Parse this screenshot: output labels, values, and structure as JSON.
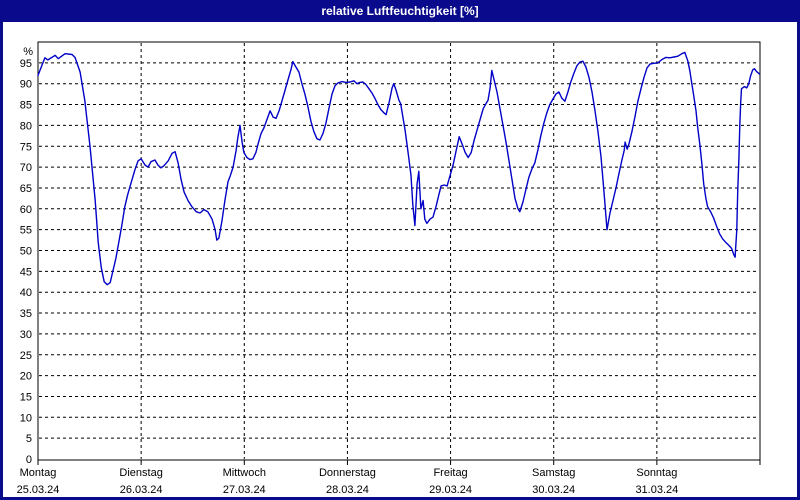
{
  "window": {
    "title": "relative Luftfeuchtigkeit [%]"
  },
  "colors": {
    "frame_blue": "#0a0a8c",
    "line_blue": "#0000c8",
    "grid_black": "#000000",
    "background": "#ffffff",
    "text": "#000000"
  },
  "chart_data": {
    "type": "line",
    "title": "relative Luftfeuchtigkeit [%]",
    "ylabel": "%",
    "ylim": [
      0,
      100
    ],
    "yticks": [
      0,
      5,
      10,
      15,
      20,
      25,
      30,
      35,
      40,
      45,
      50,
      55,
      60,
      65,
      70,
      75,
      80,
      85,
      90,
      95
    ],
    "grid": "dashed horizontal and vertical day separators",
    "legend_position": "none",
    "x_unit": "hours from Montag 25.03.24 00:00",
    "xlim": [
      0,
      168
    ],
    "days": [
      {
        "name": "Montag",
        "date": "25.03.24"
      },
      {
        "name": "Dienstag",
        "date": "26.03.24"
      },
      {
        "name": "Mittwoch",
        "date": "27.03.24"
      },
      {
        "name": "Donnerstag",
        "date": "28.03.24"
      },
      {
        "name": "Freitag",
        "date": "29.03.24"
      },
      {
        "name": "Samstag",
        "date": "30.03.24"
      },
      {
        "name": "Sonntag",
        "date": "31.03.24"
      }
    ],
    "series": [
      {
        "name": "relative Luftfeuchtigkeit",
        "color": "#0000c8",
        "points": [
          [
            0,
            92
          ],
          [
            1.6,
            96.2
          ],
          [
            2.3,
            95.7
          ],
          [
            4,
            96.8
          ],
          [
            4.7,
            96
          ],
          [
            6.3,
            97.2
          ],
          [
            7.9,
            97
          ],
          [
            8.6,
            96.3
          ],
          [
            9.8,
            92.8
          ],
          [
            10.9,
            86
          ],
          [
            12.1,
            75
          ],
          [
            13.3,
            62
          ],
          [
            14,
            52
          ],
          [
            14.7,
            46
          ],
          [
            15.4,
            42.5
          ],
          [
            16.1,
            41.8
          ],
          [
            16.8,
            42.3
          ],
          [
            17.4,
            45
          ],
          [
            18.1,
            48
          ],
          [
            18.8,
            52
          ],
          [
            19.5,
            56
          ],
          [
            20.2,
            60.5
          ],
          [
            20.9,
            63.5
          ],
          [
            21.6,
            66
          ],
          [
            22.6,
            69.5
          ],
          [
            23.3,
            71.5
          ],
          [
            24,
            72
          ],
          [
            24.9,
            70.5
          ],
          [
            25.6,
            70
          ],
          [
            26.3,
            71.3
          ],
          [
            27.2,
            71.7
          ],
          [
            27.9,
            70.5
          ],
          [
            28.6,
            69.8
          ],
          [
            29.3,
            70.3
          ],
          [
            30.3,
            71.5
          ],
          [
            31.2,
            73.3
          ],
          [
            31.9,
            73.7
          ],
          [
            32.6,
            71
          ],
          [
            33.3,
            67
          ],
          [
            34,
            64
          ],
          [
            34.9,
            62
          ],
          [
            35.8,
            60.5
          ],
          [
            36.8,
            59.3
          ],
          [
            37.7,
            59
          ],
          [
            38.6,
            59.8
          ],
          [
            39.5,
            59.3
          ],
          [
            40.5,
            57.5
          ],
          [
            41.2,
            55
          ],
          [
            41.6,
            52.5
          ],
          [
            42.1,
            53
          ],
          [
            42.8,
            57
          ],
          [
            43.5,
            62
          ],
          [
            44.2,
            66.5
          ],
          [
            44.7,
            67.8
          ],
          [
            45.4,
            70
          ],
          [
            46.1,
            74
          ],
          [
            46.5,
            77
          ],
          [
            47,
            80
          ],
          [
            47.5,
            76
          ],
          [
            47.9,
            73.5
          ],
          [
            48.6,
            72.3
          ],
          [
            49.3,
            71.8
          ],
          [
            50,
            72
          ],
          [
            50.7,
            73.5
          ],
          [
            51.2,
            75.5
          ],
          [
            51.9,
            78
          ],
          [
            52.6,
            79.5
          ],
          [
            53.3,
            81.5
          ],
          [
            54,
            83.5
          ],
          [
            54.7,
            82
          ],
          [
            55.4,
            81.7
          ],
          [
            56.1,
            83.5
          ],
          [
            56.8,
            86
          ],
          [
            57.5,
            88.5
          ],
          [
            58.2,
            91
          ],
          [
            58.9,
            93.5
          ],
          [
            59.3,
            95.3
          ],
          [
            60,
            94
          ],
          [
            60.7,
            92.8
          ],
          [
            61.4,
            90
          ],
          [
            62.1,
            87.5
          ],
          [
            62.8,
            84.5
          ],
          [
            63.5,
            81
          ],
          [
            64.2,
            78.5
          ],
          [
            64.9,
            76.8
          ],
          [
            65.6,
            76.5
          ],
          [
            66.3,
            78
          ],
          [
            67,
            80.5
          ],
          [
            67.7,
            84
          ],
          [
            68.4,
            87.5
          ],
          [
            69.1,
            89.5
          ],
          [
            69.8,
            90.2
          ],
          [
            70.7,
            90.5
          ],
          [
            71.7,
            90.3
          ],
          [
            72.6,
            90.4
          ],
          [
            73.5,
            90.7
          ],
          [
            74.2,
            90
          ],
          [
            74.9,
            90.3
          ],
          [
            75.6,
            90.4
          ],
          [
            76.3,
            89.8
          ],
          [
            77,
            88.8
          ],
          [
            77.7,
            87.8
          ],
          [
            78.4,
            86.5
          ],
          [
            79.1,
            85
          ],
          [
            79.8,
            83.8
          ],
          [
            80.5,
            83
          ],
          [
            81,
            82.6
          ],
          [
            81.7,
            85.5
          ],
          [
            82.4,
            89
          ],
          [
            82.8,
            90
          ],
          [
            83.3,
            88.5
          ],
          [
            84,
            86
          ],
          [
            84.4,
            85.2
          ],
          [
            84.9,
            82
          ],
          [
            85.4,
            79
          ],
          [
            85.8,
            76
          ],
          [
            86.3,
            72
          ],
          [
            86.8,
            68
          ],
          [
            87.2,
            61
          ],
          [
            87.7,
            56
          ],
          [
            88.2,
            66
          ],
          [
            88.6,
            69
          ],
          [
            89.1,
            60
          ],
          [
            89.6,
            62
          ],
          [
            90,
            57.5
          ],
          [
            90.5,
            56.5
          ],
          [
            91.2,
            57.5
          ],
          [
            91.9,
            58
          ],
          [
            92.6,
            60.5
          ],
          [
            93.3,
            63.5
          ],
          [
            93.8,
            65.5
          ],
          [
            94.5,
            65.7
          ],
          [
            95.2,
            65.5
          ],
          [
            95.9,
            68
          ],
          [
            96.6,
            70.5
          ],
          [
            97.3,
            74
          ],
          [
            98,
            77.3
          ],
          [
            98.7,
            75.5
          ],
          [
            99.4,
            73.5
          ],
          [
            100.1,
            72.3
          ],
          [
            100.8,
            73.5
          ],
          [
            101.5,
            76.5
          ],
          [
            102.2,
            79
          ],
          [
            102.9,
            81.5
          ],
          [
            103.6,
            84
          ],
          [
            104.3,
            85.3
          ],
          [
            104.7,
            86
          ],
          [
            105.2,
            89
          ],
          [
            105.6,
            93.2
          ],
          [
            106.1,
            91
          ],
          [
            106.8,
            88
          ],
          [
            107.5,
            84
          ],
          [
            108.2,
            80
          ],
          [
            108.9,
            76
          ],
          [
            109.6,
            71.5
          ],
          [
            110.3,
            67
          ],
          [
            111,
            62.5
          ],
          [
            111.7,
            60
          ],
          [
            112.1,
            59.3
          ],
          [
            112.8,
            61.5
          ],
          [
            113.5,
            64.5
          ],
          [
            114.2,
            67.5
          ],
          [
            114.9,
            69.5
          ],
          [
            115.6,
            71
          ],
          [
            116.3,
            74
          ],
          [
            117,
            77.5
          ],
          [
            117.7,
            80.5
          ],
          [
            118.4,
            83
          ],
          [
            119.1,
            85
          ],
          [
            119.8,
            86.3
          ],
          [
            120.5,
            87.5
          ],
          [
            121.2,
            88
          ],
          [
            121.9,
            86.5
          ],
          [
            122.6,
            85.8
          ],
          [
            123.3,
            88
          ],
          [
            124,
            90.5
          ],
          [
            124.7,
            92.5
          ],
          [
            125.4,
            94.3
          ],
          [
            126.1,
            95.2
          ],
          [
            126.8,
            95.4
          ],
          [
            127.5,
            94
          ],
          [
            128.2,
            91.5
          ],
          [
            128.9,
            88
          ],
          [
            129.6,
            83.5
          ],
          [
            130.3,
            78.5
          ],
          [
            131,
            72.5
          ],
          [
            131.7,
            64
          ],
          [
            132.4,
            55
          ],
          [
            133.1,
            59
          ],
          [
            133.8,
            62
          ],
          [
            134.5,
            65
          ],
          [
            135.2,
            68.5
          ],
          [
            135.9,
            71.8
          ],
          [
            136.4,
            74
          ],
          [
            136.6,
            76
          ],
          [
            137.1,
            74.3
          ],
          [
            137.5,
            75.5
          ],
          [
            138.2,
            78.5
          ],
          [
            138.9,
            82
          ],
          [
            139.6,
            85.8
          ],
          [
            140.3,
            88.8
          ],
          [
            141,
            91.5
          ],
          [
            141.7,
            93.8
          ],
          [
            142.4,
            94.7
          ],
          [
            143.3,
            94.9
          ],
          [
            144.2,
            95
          ],
          [
            145.2,
            95.8
          ],
          [
            146.1,
            96.3
          ],
          [
            147,
            96.2
          ],
          [
            148,
            96.4
          ],
          [
            148.9,
            96.6
          ],
          [
            149.8,
            97.2
          ],
          [
            150.5,
            97.5
          ],
          [
            151.2,
            95.5
          ],
          [
            151.7,
            93
          ],
          [
            152.1,
            90.2
          ],
          [
            152.6,
            87
          ],
          [
            153.1,
            83.5
          ],
          [
            153.5,
            79.5
          ],
          [
            154,
            75.5
          ],
          [
            154.5,
            70.5
          ],
          [
            154.9,
            66
          ],
          [
            155.4,
            62.5
          ],
          [
            155.8,
            60.5
          ],
          [
            156.5,
            59.3
          ],
          [
            157.2,
            57.8
          ],
          [
            157.9,
            55.8
          ],
          [
            158.6,
            54
          ],
          [
            159.3,
            52.8
          ],
          [
            160,
            52
          ],
          [
            160.7,
            51.3
          ],
          [
            161.4,
            50.5
          ],
          [
            161.9,
            49
          ],
          [
            162.2,
            48.4
          ],
          [
            162.6,
            55
          ],
          [
            162.8,
            64
          ],
          [
            163.1,
            72
          ],
          [
            163.3,
            80
          ],
          [
            163.5,
            85.5
          ],
          [
            163.7,
            88.8
          ],
          [
            164.4,
            89.3
          ],
          [
            164.9,
            89
          ],
          [
            165.4,
            90
          ],
          [
            165.8,
            91.8
          ],
          [
            166.3,
            93.3
          ],
          [
            166.7,
            93.6
          ],
          [
            167.2,
            92.9
          ],
          [
            167.9,
            92.3
          ]
        ]
      }
    ]
  }
}
